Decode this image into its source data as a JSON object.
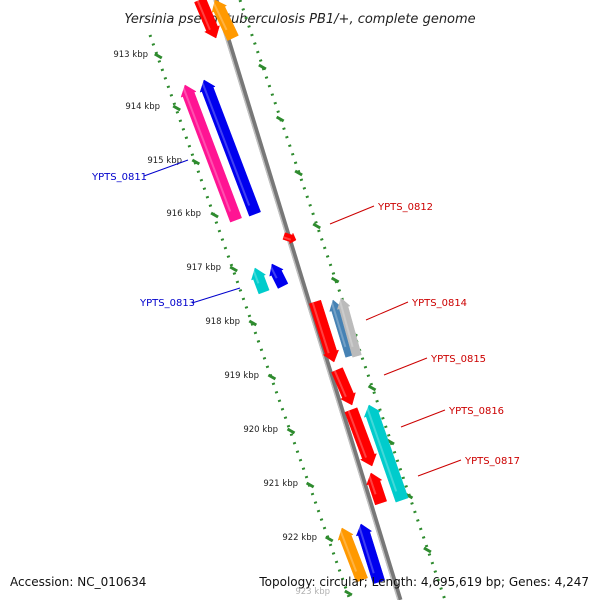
{
  "title": "Yersinia pseudotuberculosis PB1/+, complete genome",
  "footer": {
    "accession": "Accession: NC_010634",
    "topology": "Topology: circular; Length: 4,695,619 bp; Genes: 4,247"
  },
  "ticks": [
    {
      "label": "913 kbp",
      "value": 913
    },
    {
      "label": "914 kbp",
      "value": 914
    },
    {
      "label": "915 kbp",
      "value": 915
    },
    {
      "label": "916 kbp",
      "value": 916
    },
    {
      "label": "917 kbp",
      "value": 917
    },
    {
      "label": "918 kbp",
      "value": 918
    },
    {
      "label": "919 kbp",
      "value": 919
    },
    {
      "label": "920 kbp",
      "value": 920
    },
    {
      "label": "921 kbp",
      "value": 921
    },
    {
      "label": "922 kbp",
      "value": 922
    },
    {
      "label": "923 kbp",
      "value": 923
    }
  ],
  "gene_labels": [
    {
      "name": "YPTS_0811",
      "strand": "minus",
      "color": "#0000cc"
    },
    {
      "name": "YPTS_0813",
      "strand": "minus",
      "color": "#0000cc"
    },
    {
      "name": "YPTS_0812",
      "strand": "plus",
      "color": "#cc0000"
    },
    {
      "name": "YPTS_0814",
      "strand": "plus",
      "color": "#cc0000"
    },
    {
      "name": "YPTS_0815",
      "strand": "plus",
      "color": "#cc0000"
    },
    {
      "name": "YPTS_0816",
      "strand": "plus",
      "color": "#cc0000"
    },
    {
      "name": "YPTS_0817",
      "strand": "plus",
      "color": "#cc0000"
    }
  ],
  "colors": {
    "backbone": "#8a8a8a",
    "scale_dots": "#2e8b2e",
    "red": "#ff0000",
    "blue": "#0000ee",
    "magenta": "#ff1493",
    "cyan": "#00cccc",
    "orange": "#ff9900",
    "steelblue": "#4682b4",
    "gray": "#bbbbbb"
  }
}
